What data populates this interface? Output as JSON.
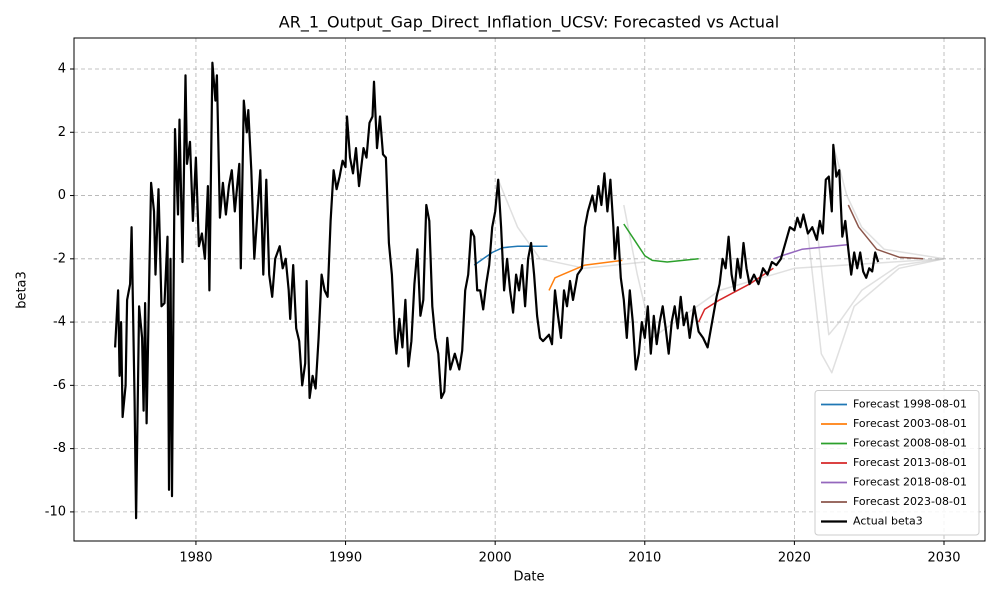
{
  "chart_data": {
    "type": "line",
    "title": "AR_1_Output_Gap_Direct_Inflation_UCSV: Forecasted vs Actual",
    "x_label": "Date",
    "y_label": "beta3",
    "xlim": [
      1971.85,
      2032.74
    ],
    "ylim": [
      -10.92,
      4.98
    ],
    "xticks": [
      1980,
      1990,
      2000,
      2010,
      2020,
      2030
    ],
    "yticks": [
      -10,
      -8,
      -6,
      -4,
      -2,
      0,
      2,
      4
    ],
    "grid": true,
    "legend": "lower right",
    "series": [
      {
        "color": "#bbbbbb",
        "x": [
          2008.6,
          2009.5,
          2010.5,
          2012,
          2015,
          2020,
          2030
        ],
        "values": [
          -0.3,
          -2.5,
          -4.5,
          -4.0,
          -3.0,
          -2.3,
          -2.0
        ]
      },
      {
        "color": "#bbbbbb",
        "x": [
          2021.5,
          2022.3,
          2023,
          2024.5,
          2027,
          2030
        ],
        "values": [
          -1.0,
          -4.4,
          -4.0,
          -3.0,
          -2.2,
          -2.0
        ]
      },
      {
        "color": "#bbbbbb",
        "x": [
          2020.9,
          2021.8,
          2022.5,
          2024,
          2027,
          2030
        ],
        "values": [
          -1.2,
          -5.0,
          -5.6,
          -3.5,
          -2.3,
          -2.0
        ]
      },
      {
        "color": "#bbbbbb",
        "x": [
          2022.6,
          2023.5,
          2024.5,
          2026,
          2030
        ],
        "values": [
          1.6,
          0.0,
          -1.0,
          -1.7,
          -2.0
        ]
      },
      {
        "color": "#bbbbbb",
        "x": [
          2000.2,
          2001.5,
          2003,
          2006,
          2010
        ],
        "values": [
          0.5,
          -1.0,
          -2.0,
          -2.3,
          -2.1
        ]
      },
      {
        "name": "Forecast 1998-08-01",
        "color": "#1f77b4",
        "x": [
          1998.6,
          1999.2,
          1999.8,
          2000.5,
          2001.5,
          2003.5
        ],
        "values": [
          -2.2,
          -2.0,
          -1.8,
          -1.65,
          -1.6,
          -1.6
        ]
      },
      {
        "name": "Forecast 2003-08-01",
        "color": "#ff7f0e",
        "x": [
          2003.6,
          2004.0,
          2004.5,
          2006.0,
          2008.5
        ],
        "values": [
          -3.0,
          -2.6,
          -2.5,
          -2.2,
          -2.05
        ]
      },
      {
        "name": "Forecast 2008-08-01",
        "color": "#2ca02c",
        "x": [
          2008.6,
          2009.3,
          2010.0,
          2010.5,
          2011.5,
          2013.6
        ],
        "values": [
          -0.9,
          -1.4,
          -1.9,
          -2.05,
          -2.1,
          -2.0
        ]
      },
      {
        "name": "Forecast 2013-08-01",
        "color": "#d62728",
        "x": [
          2013.6,
          2014.0,
          2015.0,
          2017.0,
          2018.6
        ],
        "values": [
          -4.0,
          -3.6,
          -3.3,
          -2.8,
          -2.3
        ]
      },
      {
        "name": "Forecast 2018-08-01",
        "color": "#9467bd",
        "x": [
          2018.6,
          2019.5,
          2020.5,
          2022.5,
          2023.6
        ],
        "values": [
          -2.0,
          -1.85,
          -1.7,
          -1.6,
          -1.55
        ]
      },
      {
        "name": "Forecast 2023-08-01",
        "color": "#8c564b",
        "x": [
          2023.6,
          2024.3,
          2025.5,
          2027.0,
          2028.6
        ],
        "values": [
          -0.3,
          -1.0,
          -1.7,
          -1.95,
          -2.0
        ]
      },
      {
        "name": "Actual beta3",
        "color": "#000000",
        "width": 2.2,
        "x": [
          1974.6,
          1974.8,
          1974.9,
          1975.0,
          1975.1,
          1975.3,
          1975.4,
          1975.6,
          1975.7,
          1975.9,
          1976.0,
          1976.2,
          1976.4,
          1976.5,
          1976.6,
          1976.7,
          1976.9,
          1977.0,
          1977.2,
          1977.3,
          1977.5,
          1977.7,
          1977.9,
          1978.1,
          1978.2,
          1978.3,
          1978.4,
          1978.5,
          1978.6,
          1978.8,
          1978.9,
          1979.1,
          1979.3,
          1979.4,
          1979.6,
          1979.8,
          1980.0,
          1980.2,
          1980.4,
          1980.6,
          1980.8,
          1980.9,
          1981.1,
          1981.3,
          1981.4,
          1981.6,
          1981.8,
          1982.0,
          1982.2,
          1982.4,
          1982.6,
          1982.9,
          1983.0,
          1983.2,
          1983.4,
          1983.5,
          1983.7,
          1983.9,
          1984.1,
          1984.3,
          1984.5,
          1984.7,
          1984.9,
          1985.1,
          1985.3,
          1985.6,
          1985.8,
          1986.0,
          1986.2,
          1986.3,
          1986.5,
          1986.7,
          1986.9,
          1987.1,
          1987.3,
          1987.4,
          1987.6,
          1987.8,
          1988.0,
          1988.2,
          1988.4,
          1988.6,
          1988.8,
          1989.0,
          1989.2,
          1989.4,
          1989.6,
          1989.8,
          1990.0,
          1990.1,
          1990.3,
          1990.5,
          1990.7,
          1990.9,
          1991.2,
          1991.4,
          1991.6,
          1991.8,
          1991.9,
          1992.1,
          1992.3,
          1992.5,
          1992.7,
          1992.9,
          1993.1,
          1993.3,
          1993.4,
          1993.6,
          1993.8,
          1994.0,
          1994.2,
          1994.4,
          1994.6,
          1994.8,
          1995.0,
          1995.2,
          1995.4,
          1995.6,
          1995.8,
          1996.0,
          1996.2,
          1996.4,
          1996.6,
          1996.8,
          1997.0,
          1997.3,
          1997.6,
          1997.8,
          1998.0,
          1998.2,
          1998.4,
          1998.6,
          1998.8,
          1999.0,
          1999.2,
          1999.4,
          1999.6,
          1999.8,
          2000.0,
          2000.2,
          2000.4,
          2000.6,
          2000.8,
          2001.0,
          2001.2,
          2001.4,
          2001.6,
          2001.8,
          2002.0,
          2002.2,
          2002.4,
          2002.6,
          2002.8,
          2003.0,
          2003.2,
          2003.6,
          2003.8,
          2004.0,
          2004.2,
          2004.4,
          2004.6,
          2004.8,
          2005.0,
          2005.2,
          2005.5,
          2005.8,
          2006.0,
          2006.2,
          2006.5,
          2006.7,
          2006.9,
          2007.1,
          2007.3,
          2007.5,
          2007.7,
          2007.9,
          2008.0,
          2008.2,
          2008.4,
          2008.6,
          2008.8,
          2009.0,
          2009.2,
          2009.4,
          2009.6,
          2009.8,
          2010.0,
          2010.2,
          2010.4,
          2010.6,
          2010.8,
          2011.0,
          2011.2,
          2011.4,
          2011.6,
          2011.8,
          2012.0,
          2012.2,
          2012.4,
          2012.6,
          2012.8,
          2013.0,
          2013.3,
          2013.6,
          2013.9,
          2014.2,
          2014.5,
          2014.8,
          2015.0,
          2015.2,
          2015.4,
          2015.6,
          2015.8,
          2016.0,
          2016.2,
          2016.4,
          2016.6,
          2016.8,
          2017.0,
          2017.3,
          2017.6,
          2017.9,
          2018.2,
          2018.5,
          2018.8,
          2019.1,
          2019.4,
          2019.7,
          2020.0,
          2020.2,
          2020.4,
          2020.6,
          2020.9,
          2021.2,
          2021.5,
          2021.7,
          2021.9,
          2022.1,
          2022.3,
          2022.5,
          2022.6,
          2022.8,
          2023.0,
          2023.2,
          2023.4,
          2023.6,
          2023.8,
          2024.0,
          2024.2,
          2024.4,
          2024.6,
          2024.8,
          2025.0,
          2025.2,
          2025.4,
          2025.6
        ],
        "values": [
          -4.8,
          -3.0,
          -5.7,
          -4.0,
          -7.0,
          -6.0,
          -3.3,
          -2.8,
          -1.0,
          -6.5,
          -10.2,
          -3.5,
          -4.5,
          -6.8,
          -3.4,
          -7.2,
          -2.0,
          0.4,
          -0.5,
          -2.5,
          0.2,
          -3.5,
          -3.4,
          -1.3,
          -9.3,
          -2.0,
          -9.5,
          -3.2,
          2.1,
          -0.6,
          2.4,
          -2.1,
          3.8,
          1.0,
          1.7,
          -0.8,
          1.2,
          -1.6,
          -1.2,
          -2.0,
          0.3,
          -3.0,
          4.2,
          3.0,
          3.8,
          -0.7,
          0.4,
          -0.6,
          0.3,
          0.8,
          -0.5,
          1.0,
          -2.3,
          3.0,
          2.0,
          2.7,
          0.8,
          -2.0,
          -0.6,
          0.8,
          -2.5,
          0.5,
          -2.5,
          -3.2,
          -2.0,
          -1.6,
          -2.3,
          -2.0,
          -3.0,
          -3.9,
          -2.2,
          -4.2,
          -4.6,
          -6.0,
          -5.3,
          -2.7,
          -6.4,
          -5.7,
          -6.1,
          -4.5,
          -2.5,
          -3.0,
          -3.2,
          -0.8,
          0.8,
          0.2,
          0.6,
          1.1,
          0.9,
          2.5,
          1.2,
          0.7,
          1.5,
          0.3,
          1.5,
          1.2,
          2.3,
          2.5,
          3.6,
          1.5,
          2.5,
          1.3,
          1.2,
          -1.5,
          -2.5,
          -4.5,
          -5.0,
          -3.9,
          -4.8,
          -3.3,
          -5.4,
          -4.6,
          -2.8,
          -1.7,
          -3.8,
          -3.3,
          -0.3,
          -0.8,
          -3.5,
          -4.5,
          -5.0,
          -6.4,
          -6.2,
          -4.5,
          -5.5,
          -5.0,
          -5.5,
          -4.9,
          -3.0,
          -2.5,
          -1.1,
          -1.3,
          -3.0,
          -3.0,
          -3.6,
          -2.8,
          -2.2,
          -1.0,
          -0.5,
          0.5,
          -1.0,
          -3.0,
          -2.0,
          -3.0,
          -3.7,
          -2.5,
          -3.0,
          -2.2,
          -3.5,
          -2.0,
          -1.5,
          -2.5,
          -3.8,
          -4.5,
          -4.6,
          -4.4,
          -4.7,
          -3.0,
          -3.8,
          -4.5,
          -3.0,
          -3.5,
          -2.7,
          -3.3,
          -2.5,
          -2.3,
          -1.0,
          -0.5,
          0.0,
          -0.5,
          0.3,
          -0.3,
          0.7,
          -0.5,
          0.5,
          -1.0,
          -2.0,
          -1.0,
          -2.6,
          -3.3,
          -4.5,
          -3.0,
          -4.0,
          -5.5,
          -5.0,
          -4.0,
          -4.5,
          -3.5,
          -5.0,
          -3.8,
          -4.7,
          -4.0,
          -3.5,
          -4.2,
          -5.0,
          -4.0,
          -3.5,
          -4.2,
          -3.2,
          -4.1,
          -3.7,
          -4.5,
          -3.5,
          -4.3,
          -4.5,
          -4.8,
          -4.0,
          -3.2,
          -2.8,
          -2.0,
          -2.3,
          -1.3,
          -2.5,
          -3.0,
          -2.0,
          -2.6,
          -1.5,
          -2.3,
          -2.8,
          -2.5,
          -2.8,
          -2.3,
          -2.5,
          -2.1,
          -2.2,
          -2.0,
          -1.5,
          -1.0,
          -1.1,
          -0.7,
          -1.0,
          -0.6,
          -1.2,
          -1.0,
          -1.4,
          -0.8,
          -1.2,
          0.5,
          0.6,
          -0.5,
          1.6,
          0.6,
          0.8,
          -1.3,
          -0.8,
          -1.7,
          -2.5,
          -1.8,
          -2.3,
          -1.8,
          -2.4,
          -2.6,
          -2.3,
          -2.4,
          -1.8,
          -2.1
        ]
      }
    ]
  }
}
